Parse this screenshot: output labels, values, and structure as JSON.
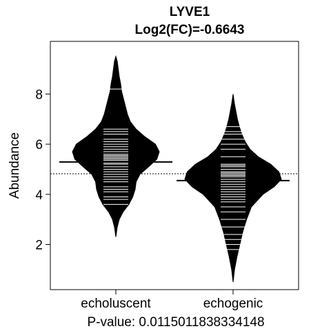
{
  "chart_data": {
    "type": "beanplot",
    "title": "LYVE1",
    "subtitle": "Log2(FC)=-0.6643",
    "xlabel": "P-value: 0.0115011838334148",
    "ylabel": "Abundance",
    "ylim": [
      0.2,
      10.1
    ],
    "yticks": [
      2,
      4,
      6,
      8
    ],
    "overall_mean": 4.82,
    "grid": false,
    "legend": "none",
    "categories": [
      "echoluscent",
      "echogenic"
    ],
    "groups": [
      {
        "name": "echoluscent",
        "mean": 5.29,
        "range": [
          2.3,
          9.5
        ],
        "density": [
          [
            2.3,
            0.0
          ],
          [
            2.7,
            0.03
          ],
          [
            3.0,
            0.07
          ],
          [
            3.3,
            0.15
          ],
          [
            3.6,
            0.27
          ],
          [
            3.9,
            0.35
          ],
          [
            4.2,
            0.4
          ],
          [
            4.5,
            0.42
          ],
          [
            4.8,
            0.5
          ],
          [
            5.1,
            0.68
          ],
          [
            5.4,
            0.85
          ],
          [
            5.7,
            0.9
          ],
          [
            6.0,
            0.82
          ],
          [
            6.3,
            0.6
          ],
          [
            6.6,
            0.42
          ],
          [
            6.9,
            0.3
          ],
          [
            7.2,
            0.24
          ],
          [
            7.5,
            0.2
          ],
          [
            7.8,
            0.16
          ],
          [
            8.1,
            0.12
          ],
          [
            8.4,
            0.1
          ],
          [
            8.7,
            0.07
          ],
          [
            9.0,
            0.05
          ],
          [
            9.3,
            0.03
          ],
          [
            9.5,
            0.0
          ]
        ],
        "observations": [
          3.6,
          3.8,
          3.9,
          4.1,
          4.2,
          4.3,
          4.5,
          4.6,
          4.7,
          4.8,
          4.9,
          5.0,
          5.1,
          5.2,
          5.25,
          5.3,
          5.35,
          5.4,
          5.45,
          5.5,
          5.55,
          5.6,
          5.7,
          5.8,
          5.9,
          6.0,
          6.1,
          6.2,
          6.4,
          6.5,
          6.6,
          8.2
        ]
      },
      {
        "name": "echogenic",
        "mean": 4.55,
        "range": [
          0.5,
          8.0
        ],
        "density": [
          [
            0.5,
            0.0
          ],
          [
            1.0,
            0.03
          ],
          [
            1.5,
            0.08
          ],
          [
            2.0,
            0.14
          ],
          [
            2.5,
            0.2
          ],
          [
            3.0,
            0.28
          ],
          [
            3.5,
            0.38
          ],
          [
            4.0,
            0.62
          ],
          [
            4.3,
            0.85
          ],
          [
            4.6,
            1.0
          ],
          [
            4.9,
            0.95
          ],
          [
            5.2,
            0.78
          ],
          [
            5.5,
            0.52
          ],
          [
            5.8,
            0.35
          ],
          [
            6.1,
            0.25
          ],
          [
            6.4,
            0.18
          ],
          [
            6.7,
            0.13
          ],
          [
            7.0,
            0.09
          ],
          [
            7.3,
            0.06
          ],
          [
            7.6,
            0.03
          ],
          [
            8.0,
            0.0
          ]
        ],
        "observations": [
          1.8,
          2.0,
          2.2,
          2.4,
          2.7,
          3.0,
          3.3,
          3.5,
          3.7,
          3.8,
          3.9,
          4.0,
          4.1,
          4.2,
          4.3,
          4.4,
          4.5,
          4.6,
          4.7,
          4.75,
          4.8,
          4.85,
          4.9,
          5.0,
          5.1,
          5.15,
          5.2,
          5.5,
          5.8,
          6.0,
          6.2,
          6.4,
          6.5,
          6.7
        ]
      }
    ]
  }
}
